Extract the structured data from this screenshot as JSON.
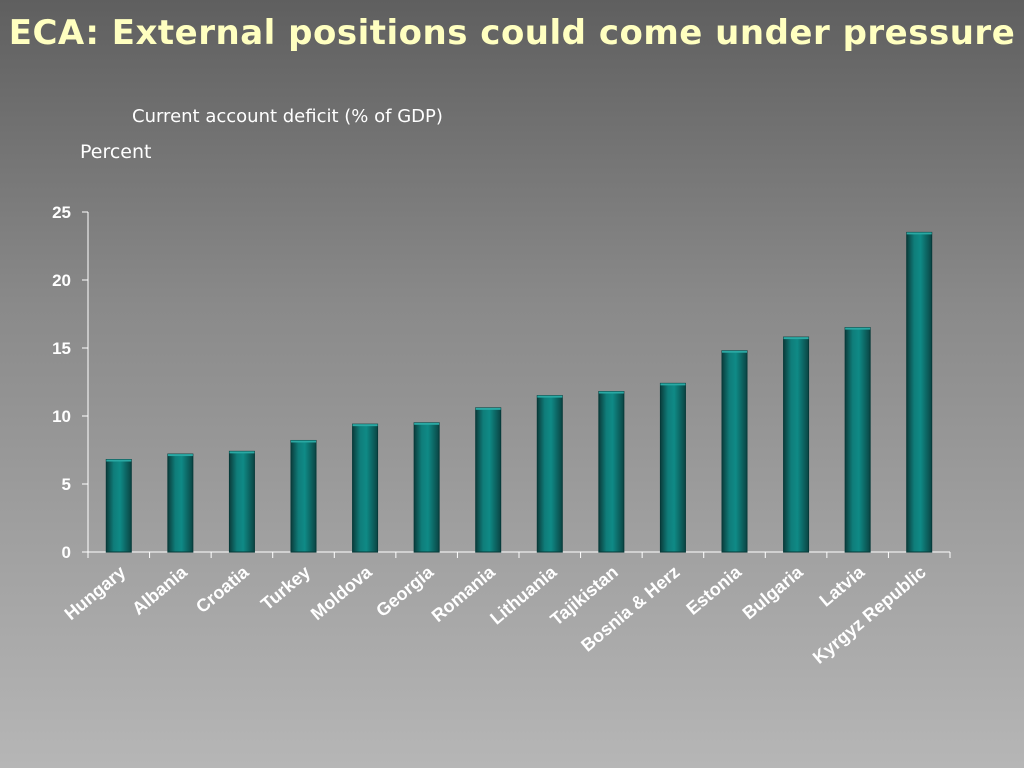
{
  "slide": {
    "title": "ECA: External positions could come under pressure",
    "subtitle": "Current account deficit (% of GDP)",
    "unit_label": "Percent"
  },
  "colors": {
    "title": "#ffffc0",
    "bar": "#007a78",
    "axis": "#ffffff",
    "label": "#ffffff"
  },
  "chart_data": {
    "type": "bar",
    "title": "ECA: External positions could come under pressure",
    "subtitle": "Current account deficit (% of GDP)",
    "ylabel": "Percent",
    "ylim": [
      0,
      25
    ],
    "yticks": [
      0,
      5,
      10,
      15,
      20,
      25
    ],
    "grid": false,
    "legend": "none",
    "categories": [
      "Hungary",
      "Albania",
      "Croatia",
      "Turkey",
      "Moldova",
      "Georgia",
      "Romania",
      "Lithuania",
      "Tajikistan",
      "Bosnia & Herz",
      "Estonia",
      "Bulgaria",
      "Latvia",
      "Kyrgyz Republic"
    ],
    "values": [
      6.8,
      7.2,
      7.4,
      8.2,
      9.4,
      9.5,
      10.6,
      11.5,
      11.8,
      12.4,
      14.8,
      15.8,
      16.5,
      23.5
    ]
  }
}
